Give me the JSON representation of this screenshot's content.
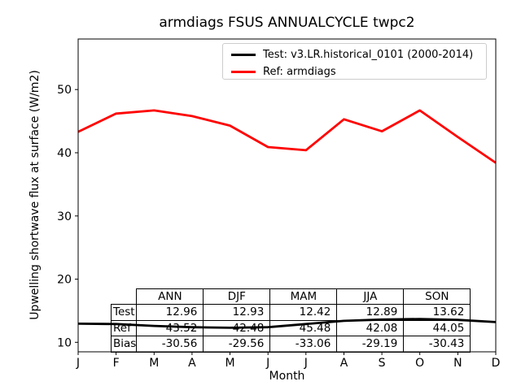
{
  "title": "armdiags FSUS ANNUALCYCLE twpc2",
  "chart_data": {
    "type": "line",
    "x": [
      "J",
      "F",
      "M",
      "A",
      "M",
      "J",
      "J",
      "A",
      "S",
      "O",
      "N",
      "D"
    ],
    "xlabel": "Month",
    "ylabel": "Upwelling shortwave flux at surface (W/m2)",
    "ylim": [
      8.5,
      58
    ],
    "yticks": [
      10,
      20,
      30,
      40,
      50
    ],
    "grid": false,
    "legend_position": "upper right",
    "series": [
      {
        "name": "Test: v3.LR.historical_0101 (2000-2014)",
        "color": "#000000",
        "values": [
          12.95,
          12.9,
          12.6,
          12.4,
          12.3,
          12.4,
          12.9,
          13.4,
          13.6,
          13.7,
          13.55,
          13.2
        ]
      },
      {
        "name": "Ref: armdiags",
        "color": "#ff0000",
        "values": [
          43.3,
          46.2,
          46.7,
          45.8,
          44.3,
          40.9,
          40.4,
          45.3,
          43.4,
          46.7,
          42.5,
          38.4
        ]
      }
    ],
    "table": {
      "col_headers": [
        "ANN",
        "DJF",
        "MAM",
        "JJA",
        "SON"
      ],
      "rows": [
        {
          "label": "Test",
          "values": [
            "12.96",
            "12.93",
            "12.42",
            "12.89",
            "13.62"
          ]
        },
        {
          "label": "Ref",
          "values": [
            "43.52",
            "42.48",
            "45.48",
            "42.08",
            "44.05"
          ]
        },
        {
          "label": "Bias",
          "values": [
            "-30.56",
            "-29.56",
            "-33.06",
            "-29.19",
            "-30.43"
          ]
        }
      ]
    }
  }
}
